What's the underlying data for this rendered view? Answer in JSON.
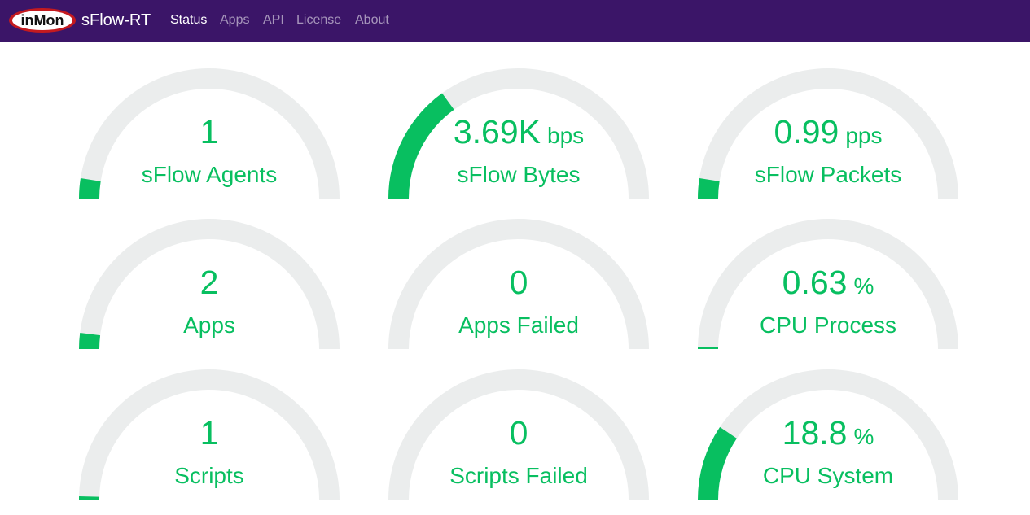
{
  "navbar": {
    "logo_text": "inMon",
    "brand": "sFlow-RT",
    "items": [
      {
        "id": "status",
        "label": "Status",
        "active": true
      },
      {
        "id": "apps",
        "label": "Apps",
        "active": false
      },
      {
        "id": "api",
        "label": "API",
        "active": false
      },
      {
        "id": "license",
        "label": "License",
        "active": false
      },
      {
        "id": "about",
        "label": "About",
        "active": false
      }
    ]
  },
  "colors": {
    "navbar_bg": "#3b1568",
    "gauge_fill": "#08bf60",
    "gauge_track": "#ebeded",
    "logo_red": "#c41a1f"
  },
  "gauges": [
    {
      "value": "1",
      "unit": "",
      "label": "sFlow Agents",
      "fill": 0.05
    },
    {
      "value": "3.69K",
      "unit": "bps",
      "label": "sFlow Bytes",
      "fill": 0.3
    },
    {
      "value": "0.99",
      "unit": "pps",
      "label": "sFlow Packets",
      "fill": 0.05
    },
    {
      "value": "2",
      "unit": "",
      "label": "Apps",
      "fill": 0.04
    },
    {
      "value": "0",
      "unit": "",
      "label": "Apps Failed",
      "fill": 0.0
    },
    {
      "value": "0.63",
      "unit": "%",
      "label": "CPU Process",
      "fill": 0.006
    },
    {
      "value": "1",
      "unit": "",
      "label": "Scripts",
      "fill": 0.008
    },
    {
      "value": "0",
      "unit": "",
      "label": "Scripts Failed",
      "fill": 0.0
    },
    {
      "value": "18.8",
      "unit": "%",
      "label": "CPU System",
      "fill": 0.188
    }
  ]
}
